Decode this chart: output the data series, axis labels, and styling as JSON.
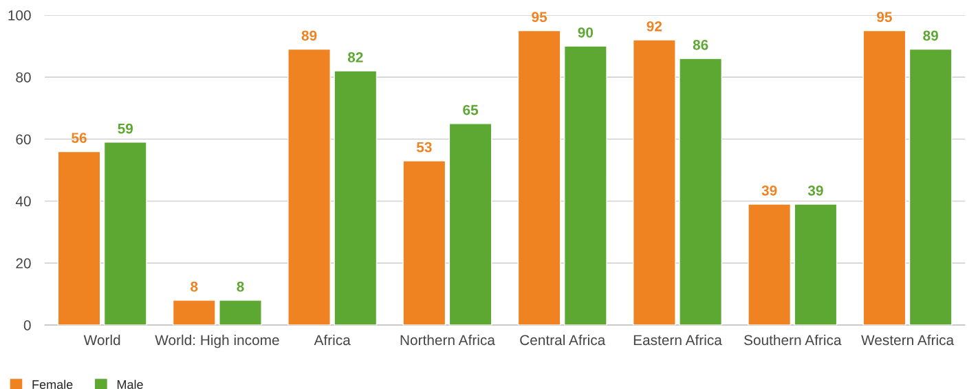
{
  "chart_data": {
    "type": "bar",
    "categories": [
      "World",
      "World: High income",
      "Africa",
      "Northern Africa",
      "Central Africa",
      "Eastern Africa",
      "Southern Africa",
      "Western Africa"
    ],
    "series": [
      {
        "name": "Female",
        "color": "#ef8322",
        "values": [
          56,
          8,
          89,
          53,
          95,
          92,
          39,
          95
        ]
      },
      {
        "name": "Male",
        "color": "#5ca832",
        "values": [
          59,
          8,
          82,
          65,
          90,
          86,
          39,
          89
        ]
      }
    ],
    "ylim": [
      0,
      100
    ],
    "yticks": [
      0,
      20,
      40,
      60,
      80,
      100
    ],
    "grid": "y",
    "legend": "bottom left",
    "data_labels": true
  }
}
